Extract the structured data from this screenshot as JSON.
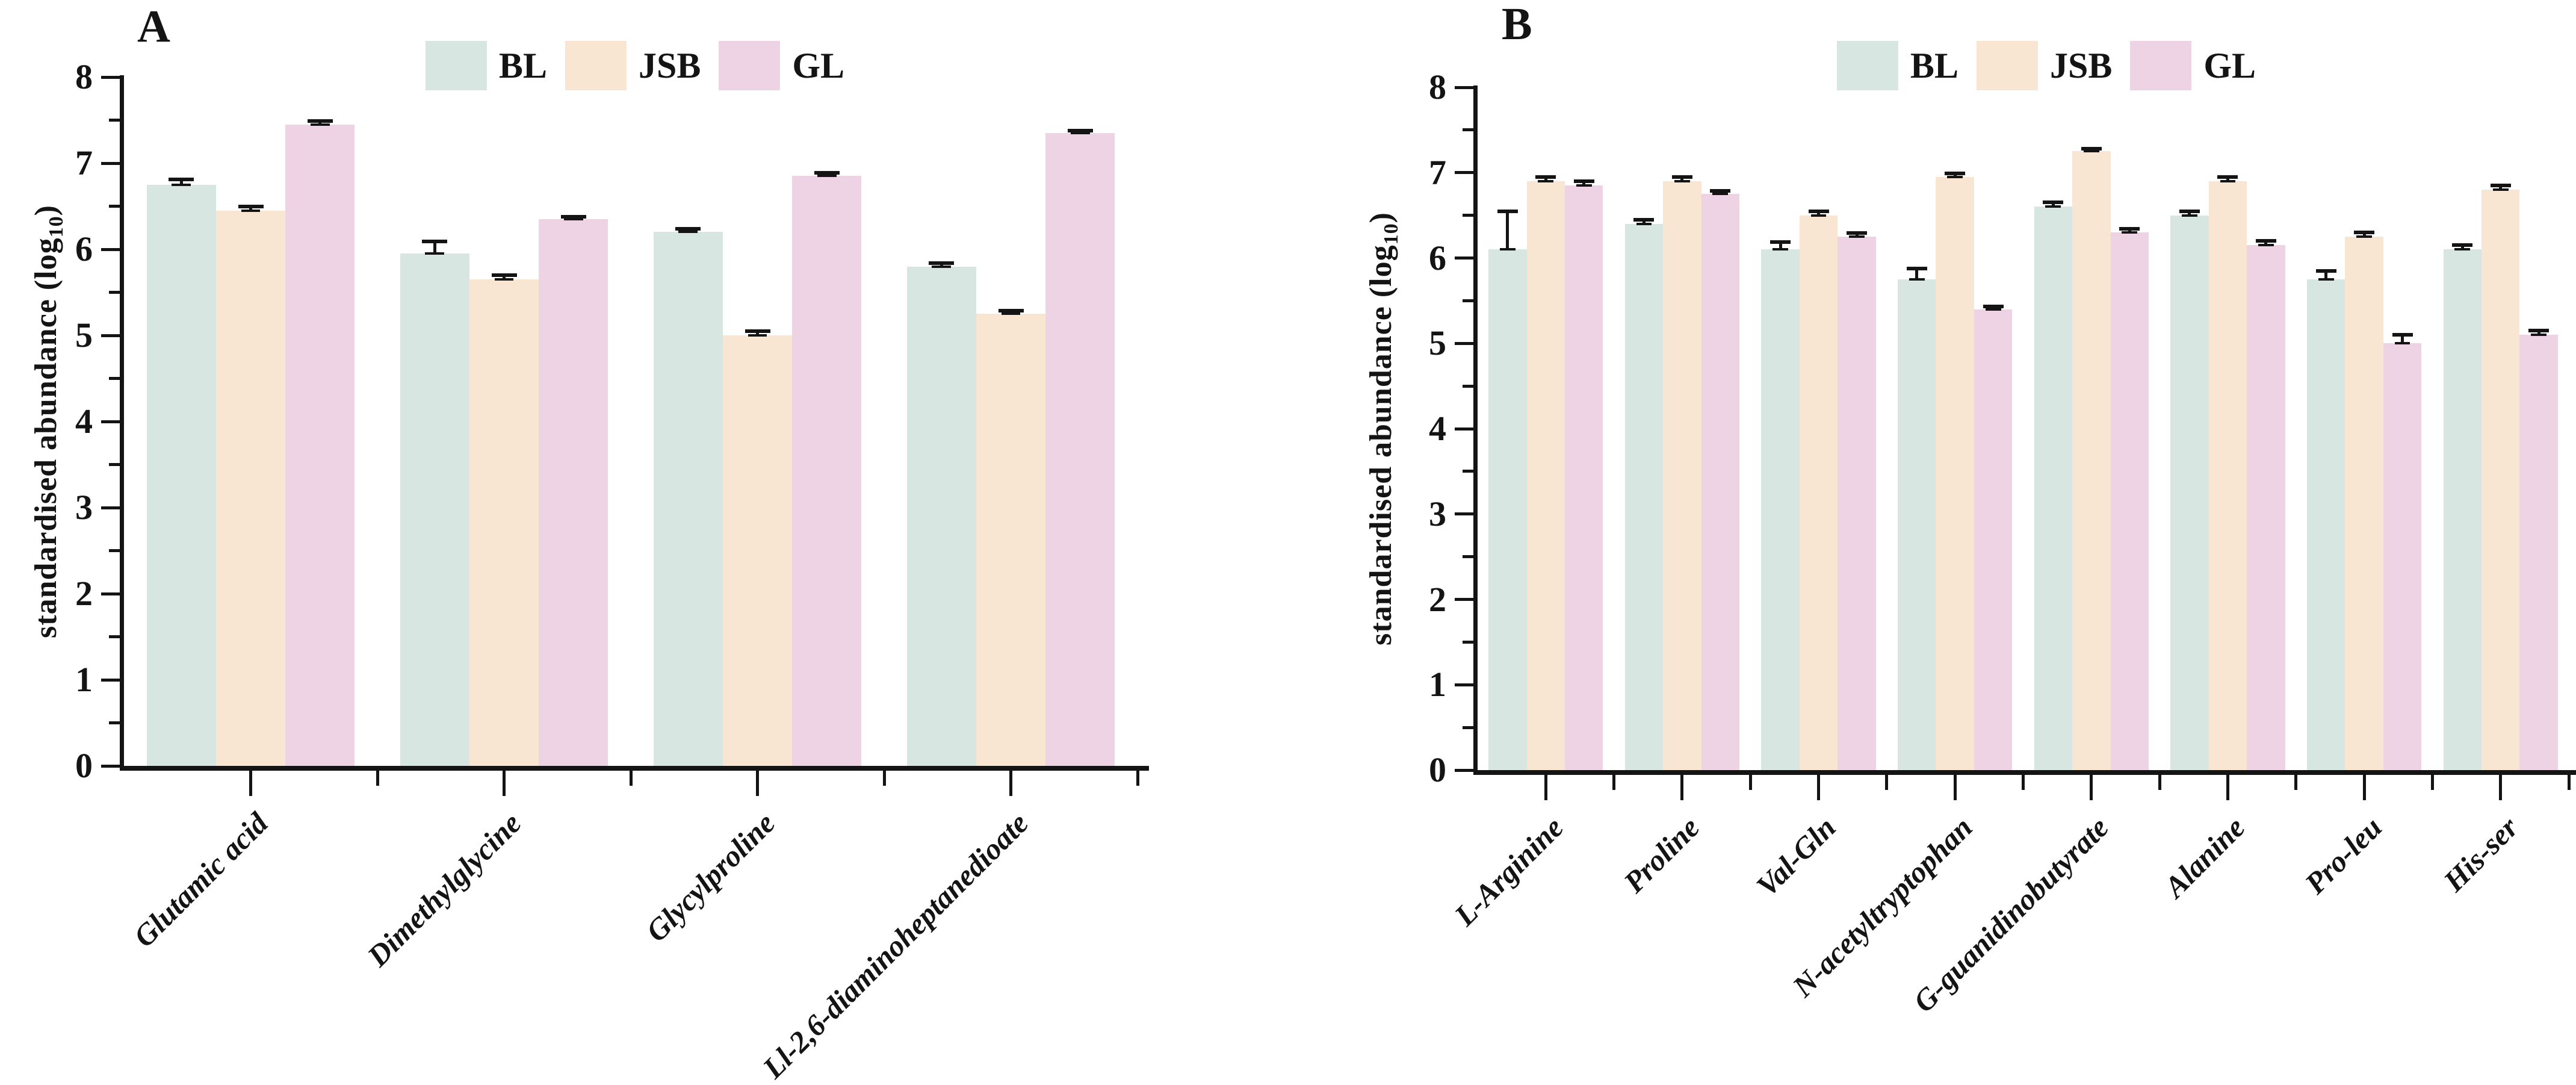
{
  "figure": {
    "background": "#ffffff",
    "axis_color": "#141414",
    "series_colors": {
      "BL": "#d8e6e2",
      "JSB": "#f9e6d2",
      "GL": "#edd3e4"
    }
  },
  "ylabel": {
    "pre": "standardised abundance (log",
    "sub": "10",
    "post": ")"
  },
  "legend": {
    "labels": [
      "BL",
      "JSB",
      "GL"
    ],
    "position": "top"
  },
  "chart_data": [
    {
      "panel": "A",
      "type": "bar",
      "title": "",
      "xlabel": "",
      "ylabel": "standardised abundance (log10)",
      "ylim": [
        0,
        8
      ],
      "ytick_step": 1,
      "minor_tick_step": 0.5,
      "grid": false,
      "legend_position": "top",
      "categories": [
        "Glutamic acid",
        "Dimethylglycine",
        "Glycylproline",
        "Ll-2,6-diaminoheptanedioate"
      ],
      "series": [
        {
          "name": "BL",
          "values": [
            6.75,
            5.95,
            6.2,
            5.8
          ],
          "errors": [
            0.06,
            0.14,
            0.04,
            0.04
          ]
        },
        {
          "name": "JSB",
          "values": [
            6.45,
            5.65,
            5.0,
            5.25
          ],
          "errors": [
            0.05,
            0.05,
            0.05,
            0.04
          ]
        },
        {
          "name": "GL",
          "values": [
            7.45,
            6.35,
            6.85,
            7.35
          ],
          "errors": [
            0.04,
            0.03,
            0.04,
            0.03
          ]
        }
      ]
    },
    {
      "panel": "B",
      "type": "bar",
      "title": "",
      "xlabel": "",
      "ylabel": "standardised abundance (log10)",
      "ylim": [
        0,
        8
      ],
      "ytick_step": 1,
      "minor_tick_step": 0.5,
      "grid": false,
      "legend_position": "top",
      "categories": [
        "L-Arginine",
        "Proline",
        "Val-Gln",
        "N-acetyltryptophan",
        "G-guanidinobutyrate",
        "Alanine",
        "Pro-leu",
        "His-ser"
      ],
      "series": [
        {
          "name": "BL",
          "values": [
            6.1,
            6.4,
            6.1,
            5.75,
            6.6,
            6.5,
            5.75,
            6.1
          ],
          "errors": [
            0.45,
            0.05,
            0.09,
            0.13,
            0.05,
            0.05,
            0.1,
            0.05
          ]
        },
        {
          "name": "JSB",
          "values": [
            6.9,
            6.9,
            6.5,
            6.95,
            7.25,
            6.9,
            6.25,
            6.8
          ],
          "errors": [
            0.05,
            0.05,
            0.05,
            0.04,
            0.03,
            0.05,
            0.05,
            0.05
          ]
        },
        {
          "name": "GL",
          "values": [
            6.85,
            6.75,
            6.25,
            5.4,
            6.3,
            6.15,
            5.0,
            5.1
          ],
          "errors": [
            0.05,
            0.04,
            0.04,
            0.03,
            0.04,
            0.05,
            0.1,
            0.05
          ]
        }
      ]
    }
  ]
}
